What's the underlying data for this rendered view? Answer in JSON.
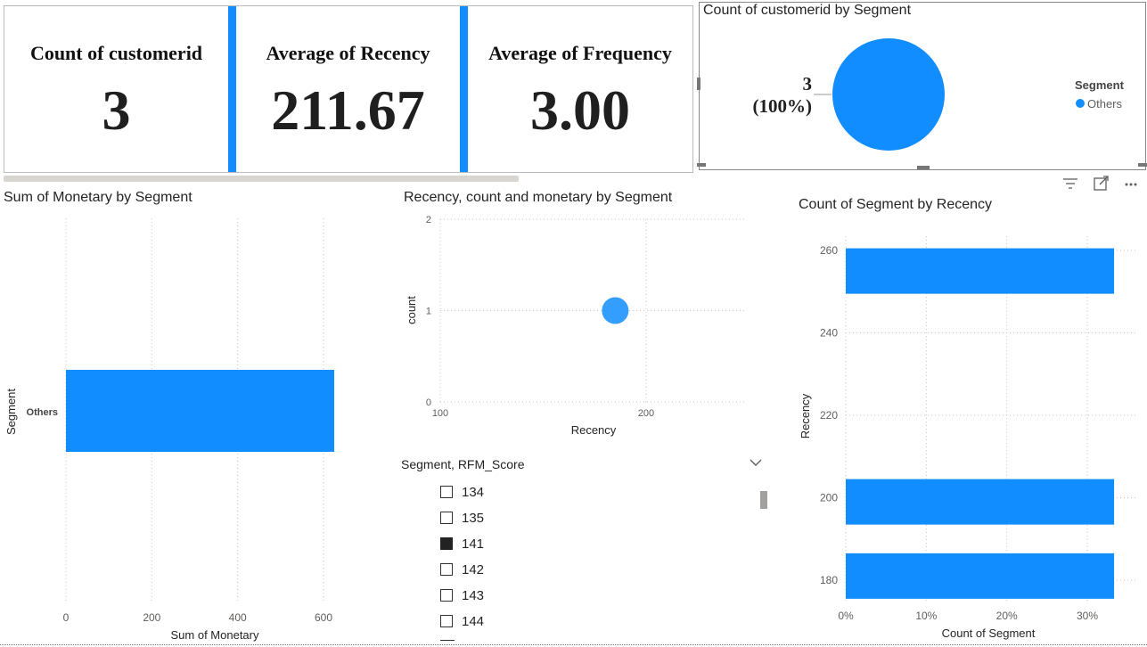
{
  "kpis": [
    {
      "title": "Count of customerid",
      "value": "3"
    },
    {
      "title": "Average of Recency",
      "value": "211.67"
    },
    {
      "title": "Average of Frequency",
      "value": "3.00"
    }
  ],
  "colors": {
    "accent": "#118dff",
    "text": "#252423"
  },
  "pie_card": {
    "legend_title": "Segment",
    "legend_item": "Others",
    "data_label_value": "3",
    "data_label_pct": "(100%)"
  },
  "header_icons": [
    "filter-icon",
    "focus-mode-icon",
    "more-options-icon"
  ],
  "slicer": {
    "title": "Segment, RFM_Score",
    "items": [
      {
        "label": "134",
        "checked": false
      },
      {
        "label": "135",
        "checked": false
      },
      {
        "label": "141",
        "checked": true
      },
      {
        "label": "142",
        "checked": false
      },
      {
        "label": "143",
        "checked": false
      },
      {
        "label": "144",
        "checked": false
      }
    ]
  },
  "chart_data": [
    {
      "type": "pie",
      "title": "Count of customerid by Segment",
      "categories": [
        "Others"
      ],
      "values": [
        3
      ],
      "legend": "right"
    },
    {
      "type": "bar",
      "orientation": "horizontal",
      "title": "Sum of Monetary by Segment",
      "xlabel": "Sum of Monetary",
      "ylabel": "Segment",
      "categories": [
        "Others"
      ],
      "values": [
        625
      ],
      "xlim": [
        0,
        650
      ],
      "xticks": [
        0,
        200,
        400,
        600
      ]
    },
    {
      "type": "scatter",
      "title": "Recency, count and monetary by Segment",
      "xlabel": "Recency",
      "ylabel": "count",
      "points": [
        {
          "x": 185,
          "y": 1
        }
      ],
      "xlim": [
        100,
        250
      ],
      "ylim": [
        0,
        2
      ],
      "xticks": [
        100,
        200
      ],
      "yticks": [
        0,
        1,
        2
      ]
    },
    {
      "type": "bar",
      "orientation": "horizontal",
      "title": "Count of Segment by Recency",
      "xlabel": "Count of Segment",
      "ylabel": "Recency",
      "categories": [
        255,
        199,
        181
      ],
      "values": [
        0.3333,
        0.3333,
        0.3333
      ],
      "xlim": [
        0,
        0.35
      ],
      "xticks": [
        "0%",
        "10%",
        "20%",
        "30%"
      ],
      "yticks": [
        260,
        240,
        220,
        200,
        180
      ]
    }
  ]
}
